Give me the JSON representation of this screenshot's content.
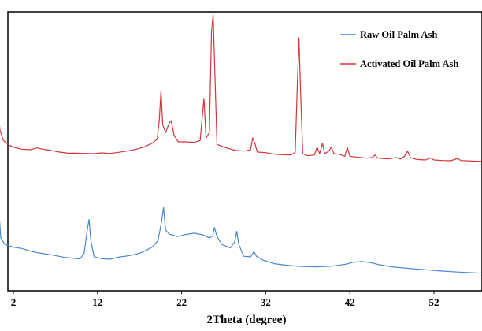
{
  "chart_data": {
    "type": "line",
    "title": "",
    "xlabel": "2Theta (degree)",
    "ylabel": "",
    "xlim": [
      0,
      60
    ],
    "x_ticks": [
      2,
      12,
      22,
      32,
      42,
      52
    ],
    "grid": false,
    "legend_position": "top-right",
    "series": [
      {
        "name": "Raw Oil Palm Ash",
        "color": "#4a86d4",
        "points": [
          [
            0,
            25.5
          ],
          [
            0.1,
            34.0
          ],
          [
            0.25,
            27.0
          ],
          [
            0.5,
            15.0
          ],
          [
            1,
            12.5
          ],
          [
            2,
            11.5
          ],
          [
            3,
            11.0
          ],
          [
            4,
            10.0
          ],
          [
            5,
            9.3
          ],
          [
            6,
            8.8
          ],
          [
            7,
            8.3
          ],
          [
            8,
            7.6
          ],
          [
            9,
            7.3
          ],
          [
            9.9,
            7.0
          ],
          [
            10.4,
            9.0
          ],
          [
            10.8,
            18.5
          ],
          [
            11.0,
            22.0
          ],
          [
            11.2,
            14.0
          ],
          [
            11.6,
            7.8
          ],
          [
            12.5,
            7.1
          ],
          [
            13.5,
            6.9
          ],
          [
            14.5,
            7.7
          ],
          [
            15.5,
            8.1
          ],
          [
            16.5,
            8.7
          ],
          [
            17.5,
            9.8
          ],
          [
            18.5,
            11.5
          ],
          [
            19.2,
            14.0
          ],
          [
            19.6,
            21.0
          ],
          [
            19.85,
            26.5
          ],
          [
            20.1,
            18.0
          ],
          [
            20.5,
            16.5
          ],
          [
            21.5,
            15.5
          ],
          [
            22.5,
            16.3
          ],
          [
            23.5,
            16.8
          ],
          [
            24.5,
            16.2
          ],
          [
            25.3,
            15.0
          ],
          [
            25.7,
            15.8
          ],
          [
            25.9,
            19.0
          ],
          [
            26.2,
            15.5
          ],
          [
            26.8,
            12.5
          ],
          [
            27.8,
            11.2
          ],
          [
            28.3,
            13.5
          ],
          [
            28.55,
            17.5
          ],
          [
            28.8,
            12.5
          ],
          [
            29.4,
            8.0
          ],
          [
            30.2,
            7.8
          ],
          [
            30.6,
            9.8
          ],
          [
            30.9,
            8.0
          ],
          [
            31.7,
            6.5
          ],
          [
            33.0,
            5.2
          ],
          [
            34.5,
            4.6
          ],
          [
            36.0,
            4.2
          ],
          [
            38.0,
            4.0
          ],
          [
            40.0,
            4.3
          ],
          [
            41.5,
            5.0
          ],
          [
            42.5,
            5.8
          ],
          [
            43.5,
            6.0
          ],
          [
            44.5,
            5.6
          ],
          [
            45.5,
            4.8
          ],
          [
            47.0,
            4.0
          ],
          [
            49.0,
            3.4
          ],
          [
            51.0,
            2.9
          ],
          [
            53.0,
            2.4
          ],
          [
            55.0,
            2.0
          ],
          [
            57.0,
            1.7
          ],
          [
            60.0,
            1.2
          ]
        ]
      },
      {
        "name": "Activated Oil Palm Ash",
        "color": "#d2353a",
        "points": [
          [
            0,
            50.0
          ],
          [
            0.15,
            66.0
          ],
          [
            0.4,
            56.0
          ],
          [
            0.8,
            52.0
          ],
          [
            1.5,
            50.2
          ],
          [
            2,
            49.5
          ],
          [
            3,
            48.7
          ],
          [
            4,
            48.5
          ],
          [
            4.8,
            49.2
          ],
          [
            5.5,
            48.7
          ],
          [
            6.5,
            48.2
          ],
          [
            7.5,
            47.6
          ],
          [
            8.5,
            47.2
          ],
          [
            9.5,
            47.2
          ],
          [
            10.5,
            47.1
          ],
          [
            11.5,
            47.0
          ],
          [
            12.5,
            47.3
          ],
          [
            13.5,
            47.1
          ],
          [
            14.5,
            47.5
          ],
          [
            15.5,
            48.0
          ],
          [
            16.5,
            48.6
          ],
          [
            17.5,
            49.5
          ],
          [
            18.5,
            51.0
          ],
          [
            19.1,
            52.5
          ],
          [
            19.35,
            60.0
          ],
          [
            19.55,
            71.0
          ],
          [
            19.75,
            58.0
          ],
          [
            20.1,
            55.0
          ],
          [
            20.5,
            58.5
          ],
          [
            20.75,
            59.5
          ],
          [
            21.1,
            54.0
          ],
          [
            21.6,
            51.5
          ],
          [
            22.5,
            51.5
          ],
          [
            23.5,
            51.3
          ],
          [
            24.2,
            52.0
          ],
          [
            24.45,
            61.0
          ],
          [
            24.65,
            68.0
          ],
          [
            24.9,
            53.0
          ],
          [
            25.3,
            55.0
          ],
          [
            25.55,
            93.0
          ],
          [
            25.75,
            100.0
          ],
          [
            25.95,
            78.0
          ],
          [
            26.2,
            50.5
          ],
          [
            27.5,
            49.0
          ],
          [
            28.5,
            48.2
          ],
          [
            29.5,
            48.0
          ],
          [
            30.2,
            48.5
          ],
          [
            30.45,
            53.0
          ],
          [
            30.7,
            51.0
          ],
          [
            31.0,
            47.6
          ],
          [
            32.0,
            47.4
          ],
          [
            33.0,
            46.8
          ],
          [
            34.0,
            46.6
          ],
          [
            35.0,
            46.5
          ],
          [
            35.5,
            47.5
          ],
          [
            35.75,
            72.0
          ],
          [
            35.95,
            91.0
          ],
          [
            36.15,
            70.0
          ],
          [
            36.4,
            47.0
          ],
          [
            37.0,
            46.2
          ],
          [
            37.8,
            46.5
          ],
          [
            38.1,
            49.5
          ],
          [
            38.4,
            47.0
          ],
          [
            38.75,
            51.0
          ],
          [
            39.0,
            47.0
          ],
          [
            39.5,
            48.0
          ],
          [
            39.8,
            49.5
          ],
          [
            40.1,
            47.0
          ],
          [
            40.7,
            46.8
          ],
          [
            41.4,
            46.0
          ],
          [
            41.7,
            49.5
          ],
          [
            42.0,
            46.0
          ],
          [
            43.0,
            45.6
          ],
          [
            44.0,
            45.3
          ],
          [
            44.7,
            45.6
          ],
          [
            45.0,
            46.5
          ],
          [
            45.3,
            45.3
          ],
          [
            46.5,
            45.0
          ],
          [
            47.5,
            45.5
          ],
          [
            48.0,
            45.0
          ],
          [
            48.5,
            46.0
          ],
          [
            48.85,
            48.0
          ],
          [
            49.2,
            45.5
          ],
          [
            50.0,
            44.8
          ],
          [
            51.0,
            44.6
          ],
          [
            51.6,
            45.4
          ],
          [
            52.0,
            44.6
          ],
          [
            53.0,
            44.4
          ],
          [
            54.0,
            44.3
          ],
          [
            54.8,
            45.2
          ],
          [
            55.2,
            44.4
          ],
          [
            56.5,
            44.2
          ],
          [
            57.5,
            44.1
          ],
          [
            60.0,
            44.0
          ]
        ]
      }
    ]
  }
}
